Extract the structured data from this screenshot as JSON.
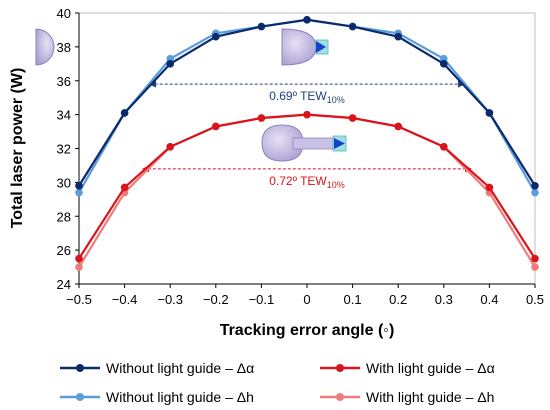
{
  "chart_data": {
    "type": "line",
    "xlabel": "Tracking error angle (◦)",
    "ylabel": "Total laser power (W)",
    "xlim": [
      -0.5,
      0.5
    ],
    "ylim": [
      24,
      40
    ],
    "xticks": [
      -0.5,
      -0.4,
      -0.3,
      -0.2,
      -0.1,
      0,
      0.1,
      0.2,
      0.3,
      0.4,
      0.5
    ],
    "xtick_labels": [
      "−0.5",
      "−0.4",
      "−0.3",
      "−0.2",
      "−0.1",
      "0",
      "0.1",
      "0.2",
      "0.3",
      "0.4",
      "0.5"
    ],
    "yticks": [
      24,
      26,
      28,
      30,
      32,
      34,
      36,
      38,
      40
    ],
    "grid": false,
    "legend_position": "bottom",
    "x": [
      -0.5,
      -0.4,
      -0.3,
      -0.2,
      -0.1,
      0,
      0.1,
      0.2,
      0.3,
      0.4,
      0.5
    ],
    "series": [
      {
        "name": "Without light guide – Δα",
        "color": "#0b2a6b",
        "values": [
          29.8,
          34.1,
          37.0,
          38.6,
          39.2,
          39.6,
          39.2,
          38.6,
          37.0,
          34.1,
          29.8
        ]
      },
      {
        "name": "With light guide – Δα",
        "color": "#d9141b",
        "values": [
          25.5,
          29.7,
          32.1,
          33.3,
          33.8,
          34.0,
          33.8,
          33.3,
          32.1,
          29.7,
          25.5
        ]
      },
      {
        "name": "Without light guide – Δh",
        "color": "#5a9ddc",
        "values": [
          29.4,
          34.1,
          37.3,
          38.8,
          39.2,
          39.6,
          39.2,
          38.8,
          37.3,
          34.1,
          29.4
        ]
      },
      {
        "name": "With light guide – Δh",
        "color": "#f07b7b",
        "values": [
          25.0,
          29.4,
          32.1,
          33.3,
          33.8,
          34.0,
          33.8,
          33.3,
          32.1,
          29.4,
          25.0
        ]
      }
    ],
    "annotations": [
      {
        "text": "0.69º TEW",
        "subscript": "10%",
        "color": "#1f3f7a",
        "x_from": -0.345,
        "x_to": 0.345,
        "y": 35.8
      },
      {
        "text": "0.72º TEW",
        "subscript": "10%",
        "color": "#d9141b",
        "x_from": -0.36,
        "x_to": 0.36,
        "y": 30.8
      }
    ]
  }
}
